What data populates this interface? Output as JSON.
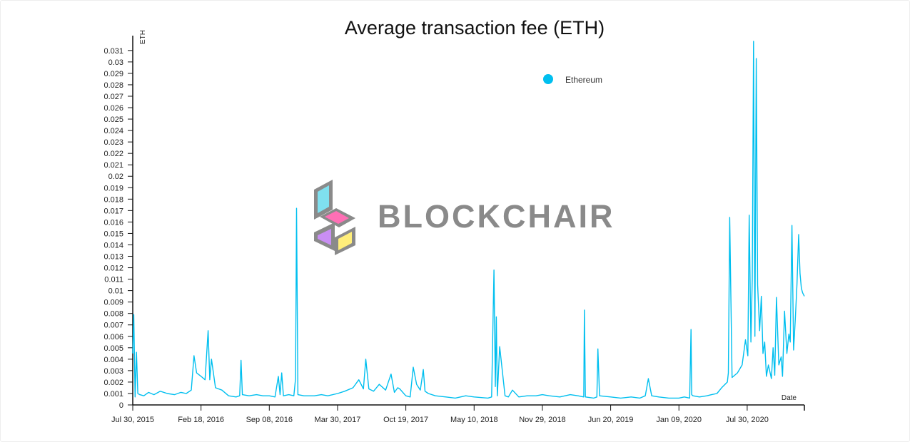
{
  "chart_data": {
    "type": "line",
    "title": "Average transaction fee (ETH)",
    "xlabel": "Date",
    "ylabel": "ETH",
    "ylim": [
      0,
      0.0318
    ],
    "yticks": [
      0,
      0.001,
      0.002,
      0.003,
      0.004,
      0.005,
      0.006,
      0.007,
      0.008,
      0.009,
      0.01,
      0.011,
      0.012,
      0.013,
      0.014,
      0.015,
      0.016,
      0.017,
      0.018,
      0.019,
      0.02,
      0.021,
      0.022,
      0.023,
      0.024,
      0.025,
      0.026,
      0.027,
      0.028,
      0.029,
      0.03,
      0.031
    ],
    "yticklabels": [
      "0",
      "0.001",
      "0.002",
      "0.003",
      "0.004",
      "0.005",
      "0.006",
      "0.007",
      "0.008",
      "0.009",
      "0.01",
      "0.011",
      "0.012",
      "0.013",
      "0.014",
      "0.015",
      "0.016",
      "0.017",
      "0.018",
      "0.019",
      "0.02",
      "0.021",
      "0.022",
      "0.023",
      "0.024",
      "0.025",
      "0.026",
      "0.027",
      "0.028",
      "0.029",
      "0.03",
      "0.031"
    ],
    "xlim": [
      "2015-07-30",
      "2021-01-16"
    ],
    "xticks": [
      "2015-07-30",
      "2016-02-18",
      "2016-09-08",
      "2017-03-30",
      "2017-10-19",
      "2018-05-10",
      "2018-11-29",
      "2019-06-20",
      "2020-01-09",
      "2020-07-30"
    ],
    "xticklabels": [
      "Jul 30, 2015",
      "Feb 18, 2016",
      "Sep 08, 2016",
      "Mar 30, 2017",
      "Oct 19, 2017",
      "May 10, 2018",
      "Nov 29, 2018",
      "Jun 20, 2019",
      "Jan 09, 2020",
      "Jul 30, 2020"
    ],
    "legend_position": "top-right",
    "grid": false,
    "series": [
      {
        "name": "Ethereum",
        "color": "#00bfef",
        "x": [
          "2015-07-30",
          "2015-08-02",
          "2015-08-06",
          "2015-08-10",
          "2015-08-14",
          "2015-08-20",
          "2015-09-01",
          "2015-09-15",
          "2015-10-01",
          "2015-10-20",
          "2015-11-10",
          "2015-12-01",
          "2015-12-20",
          "2016-01-05",
          "2016-01-20",
          "2016-01-28",
          "2016-02-05",
          "2016-02-18",
          "2016-03-01",
          "2016-03-10",
          "2016-03-15",
          "2016-03-20",
          "2016-04-01",
          "2016-04-20",
          "2016-05-10",
          "2016-06-01",
          "2016-06-12",
          "2016-06-16",
          "2016-06-20",
          "2016-07-10",
          "2016-08-01",
          "2016-08-20",
          "2016-09-08",
          "2016-09-25",
          "2016-10-05",
          "2016-10-10",
          "2016-10-15",
          "2016-10-20",
          "2016-11-05",
          "2016-11-20",
          "2016-11-25",
          "2016-11-28",
          "2016-12-02",
          "2016-12-20",
          "2017-01-20",
          "2017-02-10",
          "2017-03-01",
          "2017-03-30",
          "2017-04-20",
          "2017-05-15",
          "2017-06-01",
          "2017-06-15",
          "2017-06-22",
          "2017-07-01",
          "2017-07-15",
          "2017-08-01",
          "2017-08-20",
          "2017-09-05",
          "2017-09-15",
          "2017-09-25",
          "2017-10-01",
          "2017-10-19",
          "2017-11-01",
          "2017-11-10",
          "2017-11-20",
          "2017-12-01",
          "2017-12-10",
          "2017-12-15",
          "2017-12-25",
          "2018-01-15",
          "2018-02-15",
          "2018-03-15",
          "2018-04-15",
          "2018-05-10",
          "2018-06-20",
          "2018-07-01",
          "2018-07-08",
          "2018-07-12",
          "2018-07-15",
          "2018-07-18",
          "2018-07-25",
          "2018-08-10",
          "2018-08-20",
          "2018-09-01",
          "2018-09-20",
          "2018-10-15",
          "2018-11-10",
          "2018-11-29",
          "2018-12-20",
          "2019-01-20",
          "2019-02-20",
          "2019-03-15",
          "2019-04-01",
          "2019-04-03",
          "2019-04-06",
          "2019-05-01",
          "2019-05-10",
          "2019-05-13",
          "2019-05-18",
          "2019-06-20",
          "2019-07-20",
          "2019-08-20",
          "2019-09-15",
          "2019-10-01",
          "2019-10-10",
          "2019-10-20",
          "2019-11-10",
          "2019-12-10",
          "2020-01-09",
          "2020-01-25",
          "2020-02-10",
          "2020-02-14",
          "2020-02-16",
          "2020-02-20",
          "2020-03-10",
          "2020-04-01",
          "2020-04-15",
          "2020-05-01",
          "2020-05-15",
          "2020-06-01",
          "2020-06-04",
          "2020-06-08",
          "2020-06-15",
          "2020-07-01",
          "2020-07-15",
          "2020-07-25",
          "2020-08-01",
          "2020-08-05",
          "2020-08-10",
          "2020-08-14",
          "2020-08-18",
          "2020-08-22",
          "2020-08-26",
          "2020-08-30",
          "2020-09-02",
          "2020-09-05",
          "2020-09-10",
          "2020-09-15",
          "2020-09-20",
          "2020-09-25",
          "2020-10-01",
          "2020-10-10",
          "2020-10-15",
          "2020-10-20",
          "2020-10-25",
          "2020-11-01",
          "2020-11-08",
          "2020-11-12",
          "2020-11-18",
          "2020-11-25",
          "2020-12-01",
          "2020-12-05",
          "2020-12-10",
          "2020-12-15",
          "2020-12-20",
          "2020-12-25",
          "2020-12-30",
          "2021-01-03",
          "2021-01-07",
          "2021-01-11",
          "2021-01-16"
        ],
        "y": [
          0.0045,
          0.0079,
          0.0007,
          0.0046,
          0.001,
          0.0009,
          0.0008,
          0.0011,
          0.0009,
          0.0012,
          0.001,
          0.0009,
          0.0011,
          0.001,
          0.0013,
          0.0043,
          0.0028,
          0.0025,
          0.0022,
          0.0065,
          0.0022,
          0.004,
          0.0015,
          0.0013,
          0.0008,
          0.0007,
          0.0008,
          0.0039,
          0.0009,
          0.0008,
          0.0009,
          0.0008,
          0.0008,
          0.0007,
          0.0025,
          0.0009,
          0.0028,
          0.0008,
          0.0009,
          0.0008,
          0.0023,
          0.0172,
          0.0009,
          0.0008,
          0.0008,
          0.0009,
          0.0008,
          0.001,
          0.0012,
          0.0015,
          0.0022,
          0.0014,
          0.004,
          0.0014,
          0.0012,
          0.0018,
          0.0013,
          0.0027,
          0.0011,
          0.0015,
          0.0014,
          0.0008,
          0.0007,
          0.0033,
          0.0018,
          0.0013,
          0.0031,
          0.0012,
          0.001,
          0.0008,
          0.0007,
          0.0006,
          0.0008,
          0.0007,
          0.0006,
          0.0007,
          0.0118,
          0.0016,
          0.0077,
          0.0008,
          0.0051,
          0.0008,
          0.0007,
          0.0013,
          0.0007,
          0.0008,
          0.0008,
          0.0009,
          0.0008,
          0.0007,
          0.0009,
          0.0008,
          0.0007,
          0.0083,
          0.0007,
          0.0006,
          0.0007,
          0.0049,
          0.0008,
          0.0007,
          0.0006,
          0.0007,
          0.0006,
          0.0008,
          0.0023,
          0.0008,
          0.0007,
          0.0006,
          0.0006,
          0.0007,
          0.0006,
          0.0066,
          0.0009,
          0.0008,
          0.0007,
          0.0008,
          0.0009,
          0.001,
          0.0015,
          0.002,
          0.0028,
          0.0164,
          0.0024,
          0.0028,
          0.0035,
          0.0057,
          0.0043,
          0.0166,
          0.0055,
          0.011,
          0.0318,
          0.006,
          0.0303,
          0.0105,
          0.0085,
          0.0065,
          0.0095,
          0.0045,
          0.0055,
          0.0025,
          0.0035,
          0.0023,
          0.005,
          0.0026,
          0.0094,
          0.0035,
          0.0042,
          0.0025,
          0.0082,
          0.0045,
          0.0062,
          0.0055,
          0.0157,
          0.0048,
          0.0075,
          0.0105,
          0.0149,
          0.0115,
          0.0102,
          0.0098,
          0.0095
        ]
      }
    ]
  },
  "brand": {
    "wordmark": "BLOCKCHAIR",
    "colors": {
      "cyan": "#7fe0ef",
      "pink": "#ff6fb5",
      "purple": "#c98ef4",
      "yellow": "#ffee7a",
      "gray": "#8a8a8a"
    }
  }
}
